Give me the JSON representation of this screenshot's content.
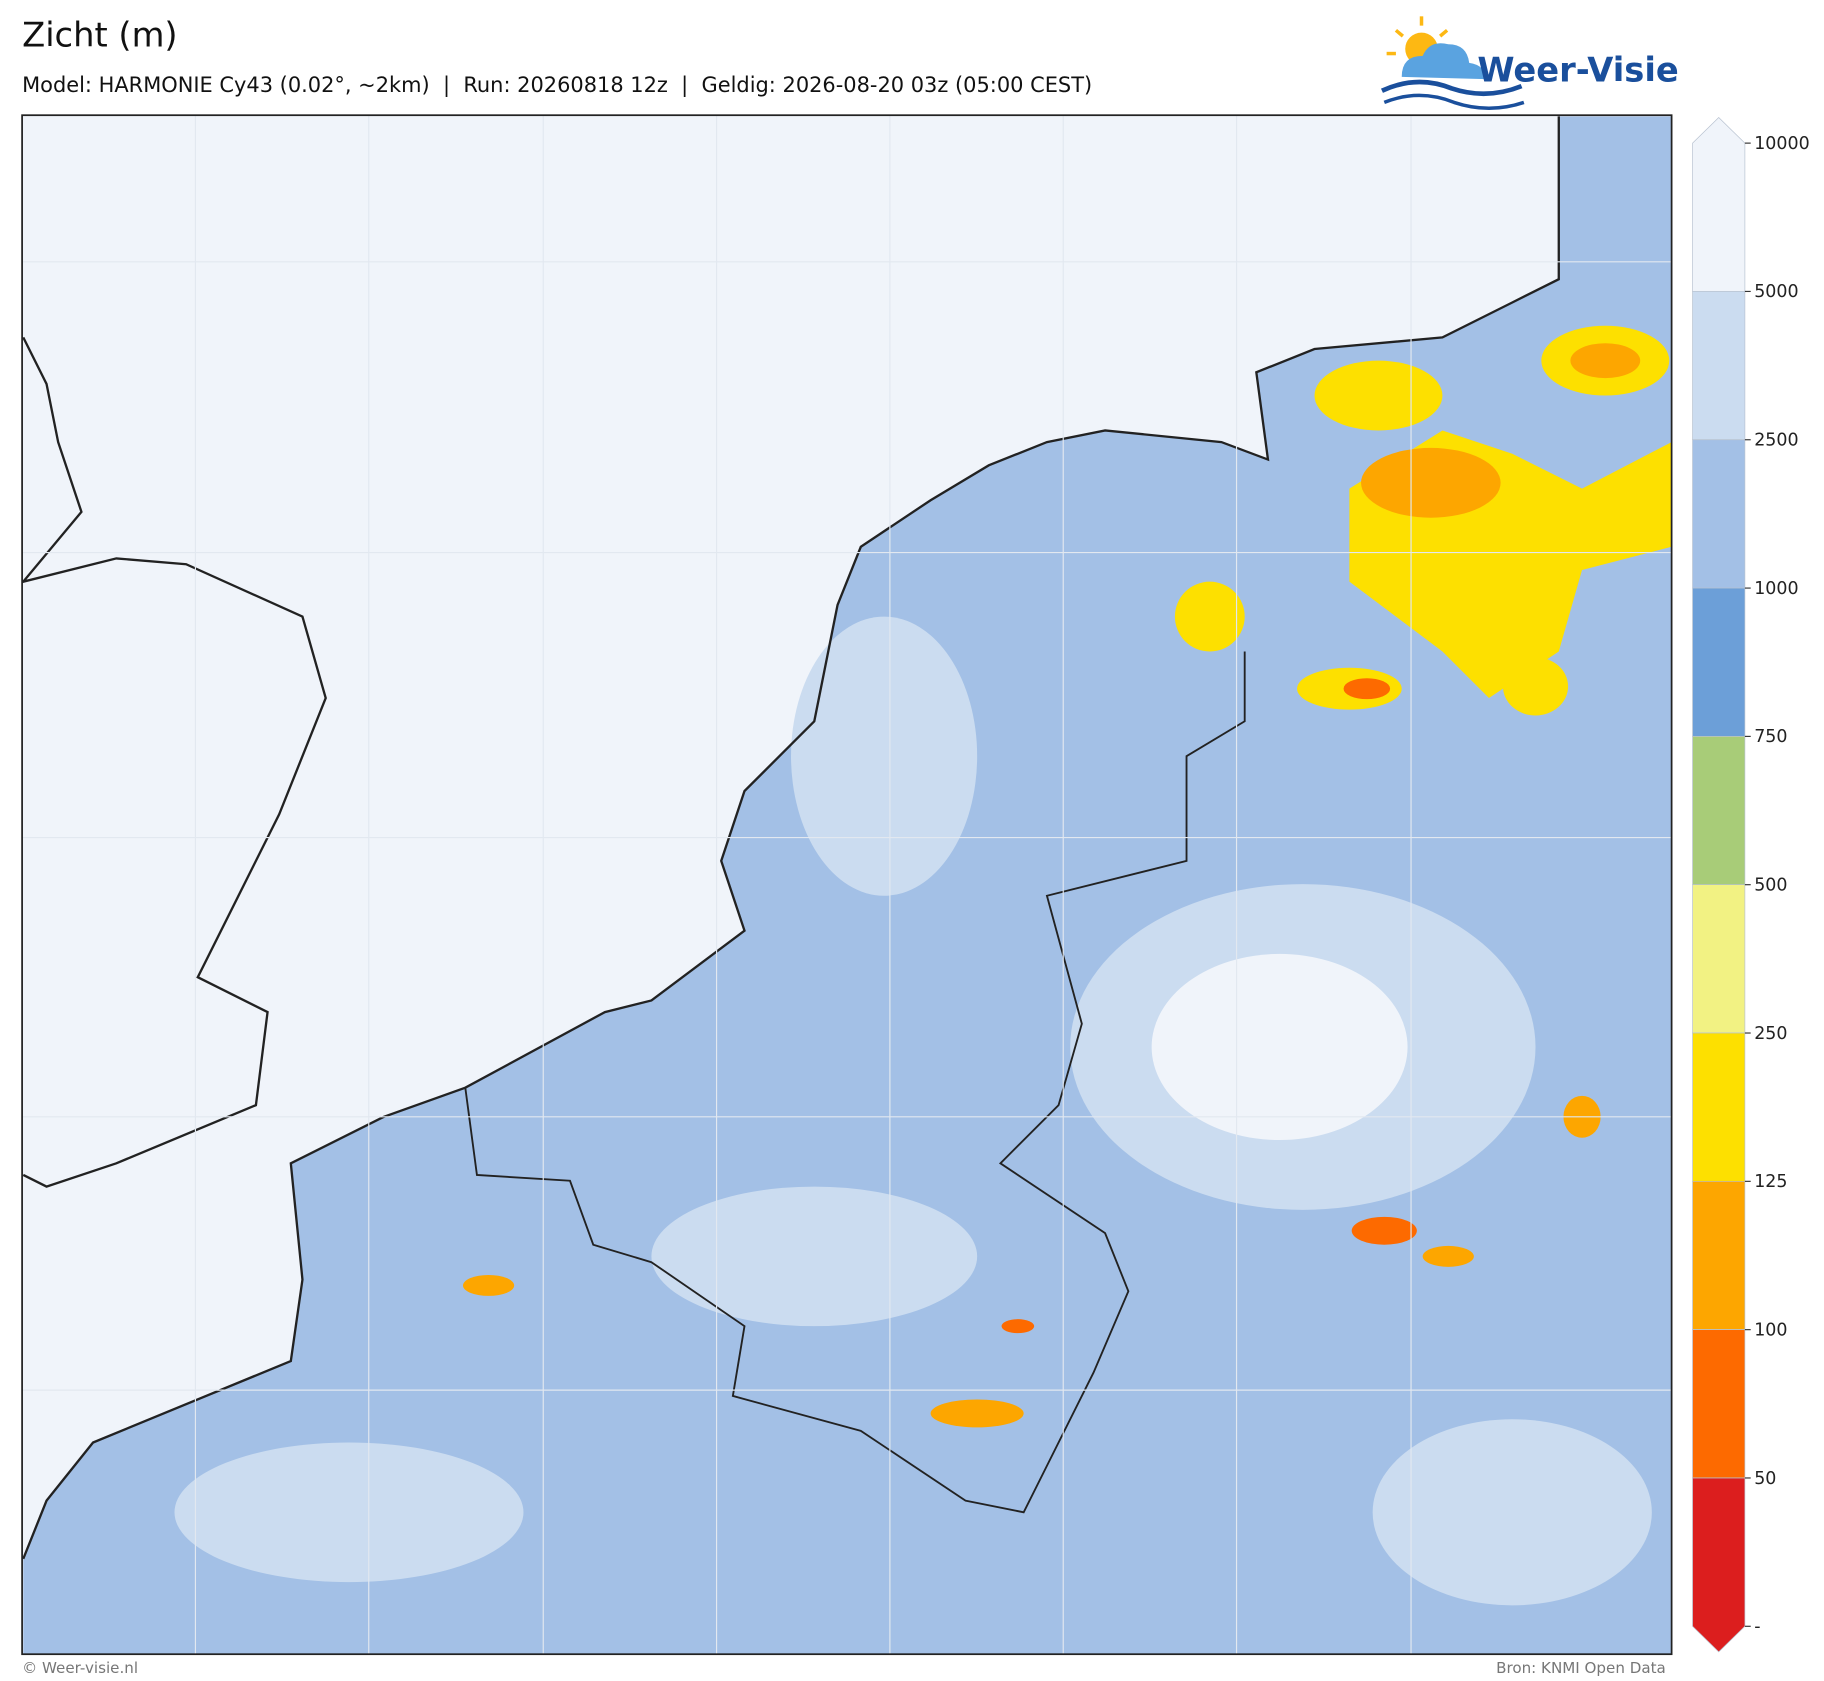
{
  "header": {
    "title": "Zicht (m)",
    "subtitle": "Model: HARMONIE Cy43 (0.02°, ~2km)  |  Run: 20260818 12z  |  Geldig: 2026-08-20 03z (05:00 CEST)"
  },
  "logo": {
    "text": "Weer-Visie"
  },
  "colorbar": {
    "labels": [
      "10000",
      "5000",
      "2500",
      "1000",
      "750",
      "500",
      "250",
      "125",
      "100",
      "50",
      "-"
    ],
    "colors": [
      "#f0f4fa",
      "#cbdcf0",
      "#a3c0e6",
      "#6c9fd8",
      "#a8cc78",
      "#f2f283",
      "#fde000",
      "#fda600",
      "#fd6a00",
      "#dc1e1e"
    ]
  },
  "footer": {
    "left": "© Weer-visie.nl",
    "right": "Bron: KNMI Open Data"
  }
}
